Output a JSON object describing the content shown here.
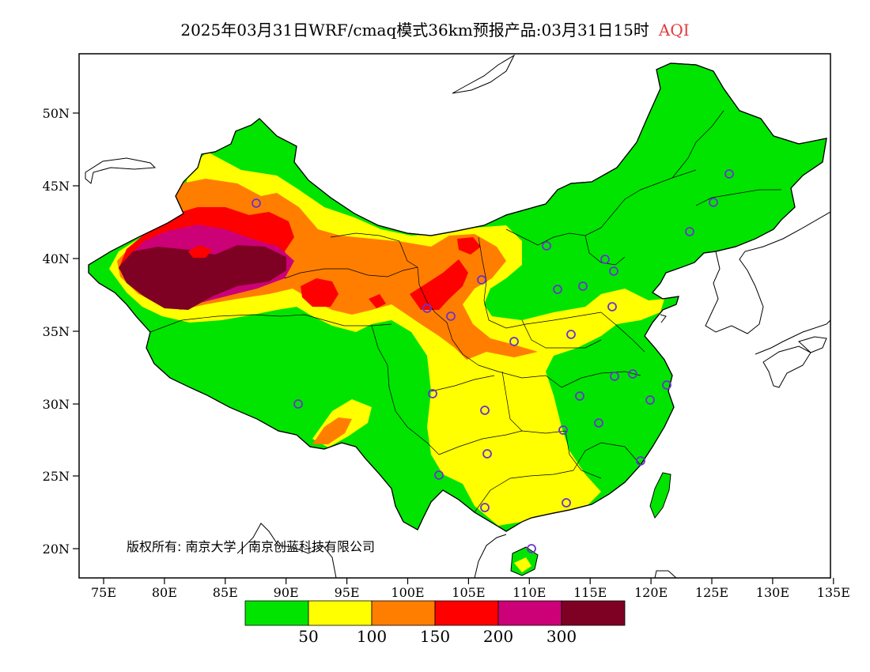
{
  "title": {
    "main": "2025年03月31日WRF/cmaq模式36km预报产品:03月31日15时",
    "variable": "AQI",
    "variable_color": "#e23b3b"
  },
  "axes": {
    "lat_labels": [
      "50N",
      "45N",
      "40N",
      "35N",
      "30N",
      "25N",
      "20N"
    ],
    "lon_labels": [
      "75E",
      "80E",
      "85E",
      "90E",
      "95E",
      "100E",
      "105E",
      "110E",
      "115E",
      "120E",
      "125E",
      "130E",
      "135E"
    ],
    "lon_range": [
      73,
      135
    ],
    "lat_range": [
      18,
      54
    ]
  },
  "colorbar": {
    "colors": [
      "#00e400",
      "#ffff00",
      "#ff7e00",
      "#ff0000",
      "#cc0077",
      "#7e0023"
    ],
    "labels": [
      "50",
      "100",
      "150",
      "200",
      "300"
    ]
  },
  "copyright": "版权所有: 南京大学 | 南京创蓝科技有限公司",
  "station_color": "#6a33cc"
}
